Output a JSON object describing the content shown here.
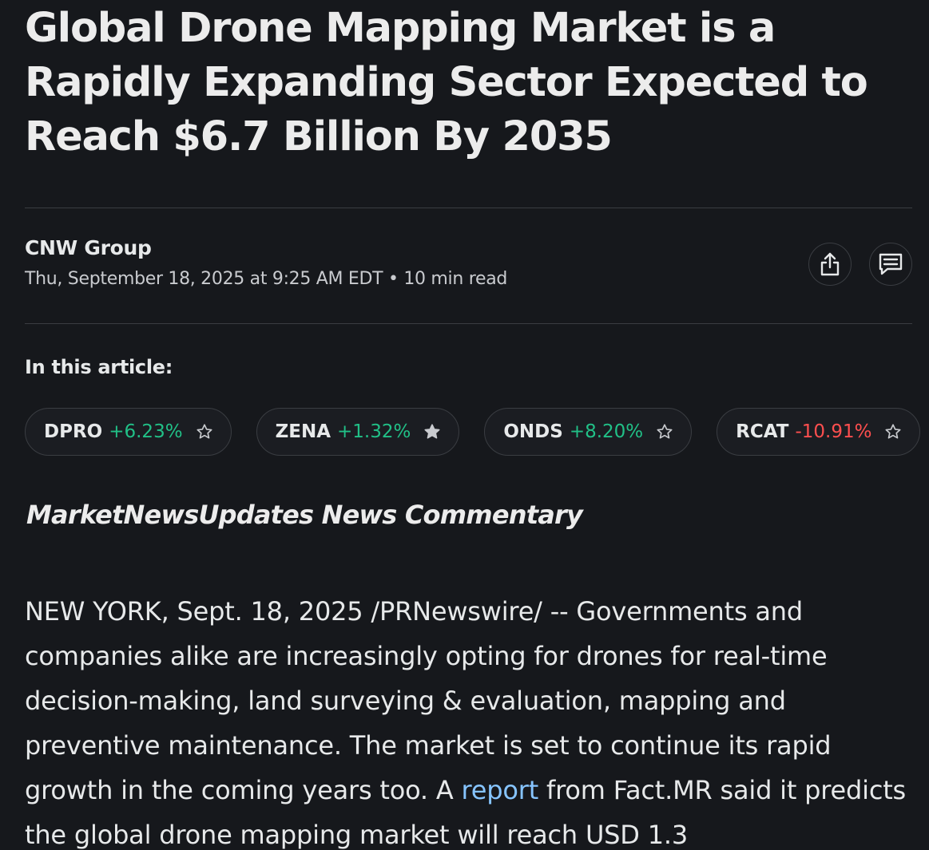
{
  "article": {
    "headline": "Global Drone Mapping Market is a Rapidly Expanding Sector Expected to Reach $6.7 Billion By 2035",
    "source": "CNW Group",
    "meta": "Thu, September 18, 2025 at 9:25 AM EDT • 10 min read",
    "in_this_article_label": "In this article:",
    "commentary_heading": "MarketNewsUpdates News Commentary",
    "body_before_link": "NEW YORK, Sept. 18, 2025 /PRNewswire/ -- Governments and companies alike are increasingly opting for drones for real-time decision-making, land surveying & evaluation, mapping and preventive maintenance. The market is set to continue its rapid growth in the coming years too. A ",
    "body_link": "report",
    "body_after_link": " from Fact.MR said it predicts the global drone mapping market will reach USD 1.3"
  },
  "tickers": [
    {
      "symbol": "DPRO",
      "change": "+6.23%",
      "direction": "up",
      "starred": false
    },
    {
      "symbol": "ZENA",
      "change": "+1.32%",
      "direction": "up",
      "starred": true
    },
    {
      "symbol": "ONDS",
      "change": "+8.20%",
      "direction": "up",
      "starred": false
    },
    {
      "symbol": "RCAT",
      "change": "-10.91%",
      "direction": "down",
      "starred": false
    }
  ],
  "icons": {
    "share": "share-icon",
    "comments": "comments-icon",
    "star_outline": "star-outline-icon",
    "star_filled": "star-filled-icon"
  },
  "colors": {
    "background": "#16181c",
    "positive": "#21c087",
    "negative": "#ff4f4f",
    "link": "#86c4ff"
  }
}
